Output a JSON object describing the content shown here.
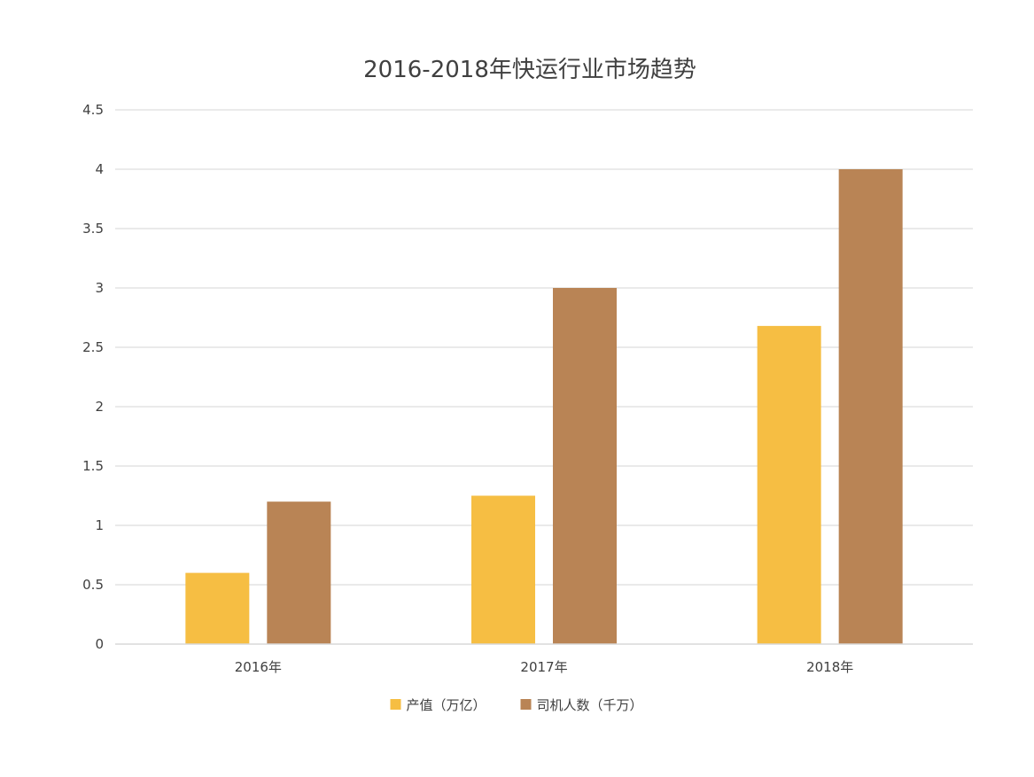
{
  "chart_data": {
    "type": "bar",
    "title": "2016-2018年快运行业市场趋势",
    "xlabel": "",
    "ylabel": "",
    "categories": [
      "2016年",
      "2017年",
      "2018年"
    ],
    "series": [
      {
        "name": "产值（万亿）",
        "values": [
          0.6,
          1.25,
          2.68
        ],
        "color": "#F6BE43"
      },
      {
        "name": "司机人数（千万）",
        "values": [
          1.2,
          3.0,
          4.0
        ],
        "color": "#B98455"
      }
    ],
    "ylim": [
      0,
      4.5
    ],
    "yticks": [
      "0",
      "0.5",
      "1",
      "1.5",
      "2",
      "2.5",
      "3",
      "3.5",
      "4",
      "4.5"
    ],
    "grid": true,
    "legend_position": "bottom"
  }
}
